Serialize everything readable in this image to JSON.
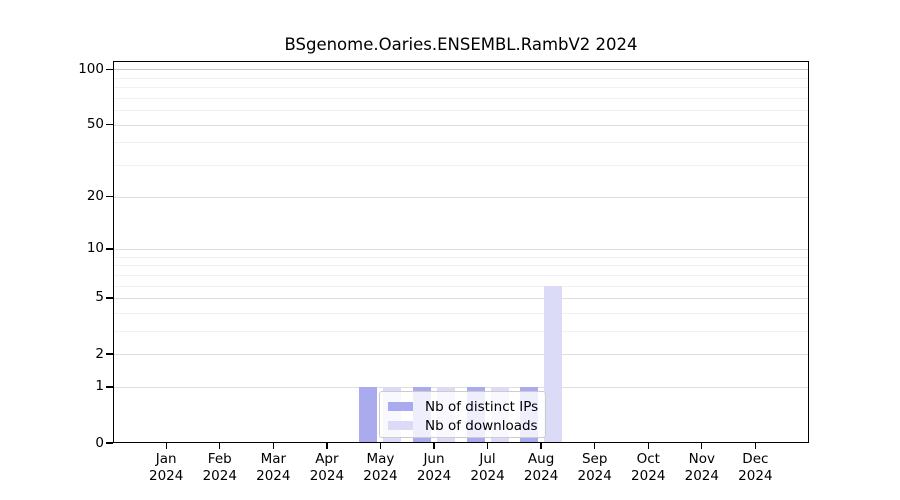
{
  "chart_data": {
    "type": "bar",
    "title": "BSgenome.Oaries.ENSEMBL.RambV2 2024",
    "year": "2024",
    "categories": [
      "Jan",
      "Feb",
      "Mar",
      "Apr",
      "May",
      "Jun",
      "Jul",
      "Aug",
      "Sep",
      "Oct",
      "Nov",
      "Dec"
    ],
    "series": [
      {
        "name": "Nb of distinct IPs",
        "color": "#aaaaee",
        "values": [
          0,
          0,
          0,
          0,
          1,
          1,
          1,
          1,
          0,
          0,
          0,
          0
        ]
      },
      {
        "name": "Nb of downloads",
        "color": "#dbdbf8",
        "values": [
          0,
          0,
          0,
          0,
          1,
          1,
          1,
          6,
          0,
          0,
          0,
          0
        ]
      }
    ],
    "y_axis": {
      "scale": "log1p",
      "major_ticks": [
        0,
        1,
        2,
        5,
        10,
        20,
        50,
        100
      ],
      "minor_gridlines": [
        3,
        4,
        6,
        7,
        8,
        9,
        30,
        40,
        60,
        70,
        80,
        90
      ],
      "ylim": [
        0,
        100
      ]
    },
    "grid": "horizontal",
    "legend": {
      "position": "inside-bottom-center",
      "labels": [
        "Nb of distinct IPs",
        "Nb of downloads"
      ]
    }
  }
}
